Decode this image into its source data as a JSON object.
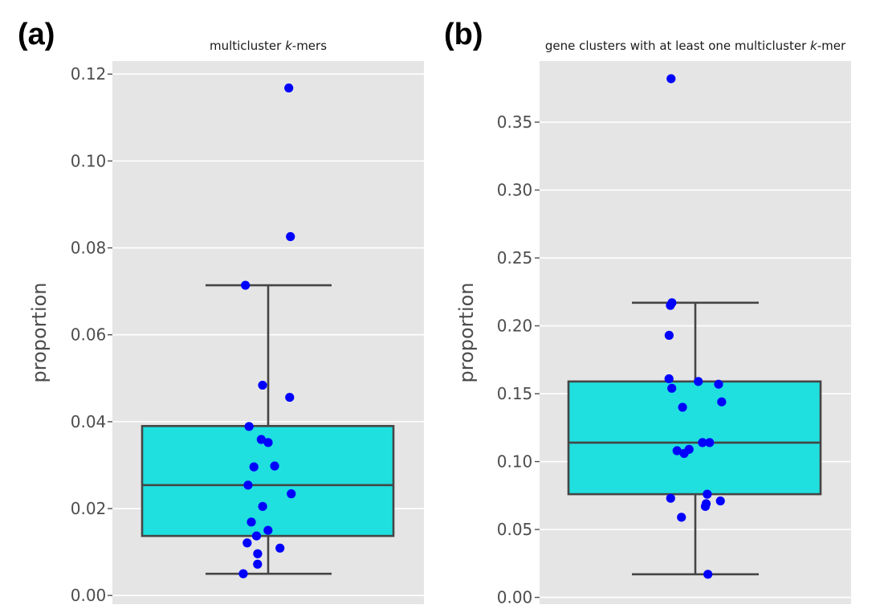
{
  "chart_data": [
    {
      "type": "box",
      "panel_label": "(a)",
      "title": "multicluster k-mers",
      "title_prefix": "multicluster ",
      "title_italic": "k",
      "title_suffix": "-mers",
      "ylabel": "proportion",
      "ylim": [
        -0.002,
        0.123
      ],
      "yticks": [
        0.0,
        0.02,
        0.04,
        0.06,
        0.08,
        0.1,
        0.12
      ],
      "ytick_labels": [
        "0.00",
        "0.02",
        "0.04",
        "0.06",
        "0.08",
        "0.10",
        "0.12"
      ],
      "grid": true,
      "box": {
        "whisker_low": 0.005,
        "q1": 0.0137,
        "median": 0.0254,
        "q3": 0.039,
        "whisker_high": 0.0714
      },
      "box_color": "#20dfdf",
      "point_color": "#0000ff",
      "points": [
        0.1168,
        0.0826,
        0.0714,
        0.0484,
        0.0456,
        0.0389,
        0.0359,
        0.0352,
        0.0298,
        0.0296,
        0.0254,
        0.0234,
        0.0205,
        0.0169,
        0.015,
        0.0137,
        0.0121,
        0.0109,
        0.0096,
        0.0072,
        0.005
      ]
    },
    {
      "type": "box",
      "panel_label": "(b)",
      "title": "gene clusters with at least one multicluster k-mer",
      "title_prefix": "gene clusters with at least one multicluster ",
      "title_italic": "k",
      "title_suffix": "-mer",
      "ylabel": "proportion",
      "ylim": [
        -0.005,
        0.395
      ],
      "yticks": [
        0.0,
        0.05,
        0.1,
        0.15,
        0.2,
        0.25,
        0.3,
        0.35
      ],
      "ytick_labels": [
        "0.00",
        "0.05",
        "0.10",
        "0.15",
        "0.20",
        "0.25",
        "0.30",
        "0.35"
      ],
      "grid": true,
      "box": {
        "whisker_low": 0.017,
        "q1": 0.076,
        "median": 0.114,
        "q3": 0.159,
        "whisker_high": 0.217
      },
      "box_color": "#20dfdf",
      "point_color": "#0000ff",
      "points": [
        0.382,
        0.217,
        0.215,
        0.193,
        0.161,
        0.159,
        0.157,
        0.154,
        0.144,
        0.14,
        0.114,
        0.114,
        0.109,
        0.108,
        0.106,
        0.076,
        0.073,
        0.071,
        0.069,
        0.067,
        0.059,
        0.017
      ]
    }
  ]
}
